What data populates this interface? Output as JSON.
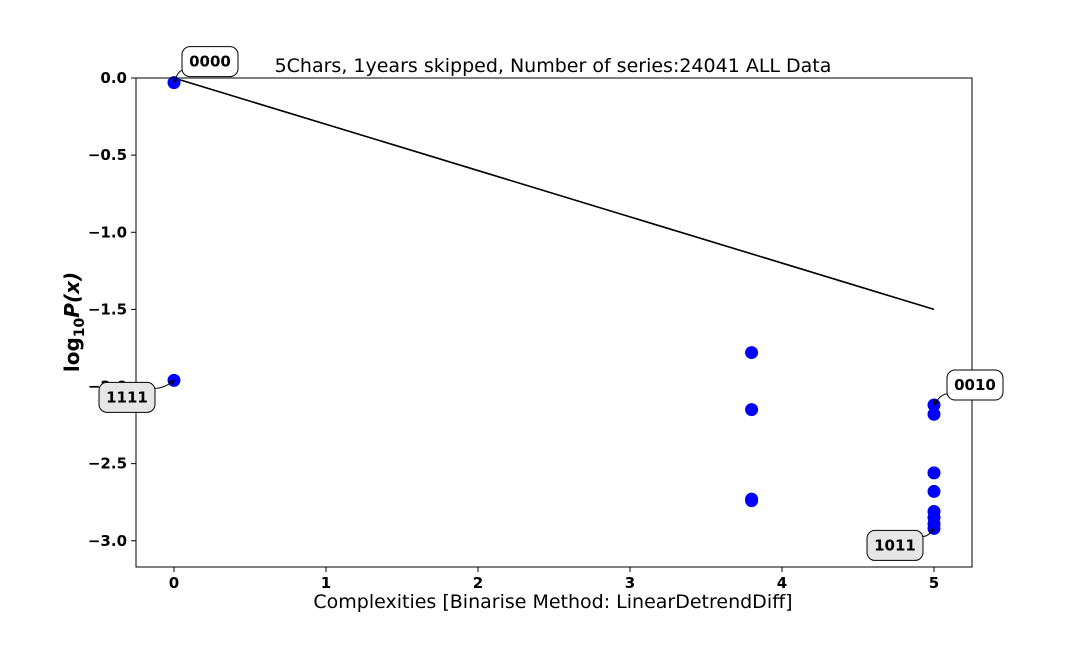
{
  "chart_data": {
    "type": "scatter",
    "title": "5Chars, 1years skipped, Number of series:24041 ALL Data",
    "xlabel": "Complexities [Binarise Method: LinearDetrendDiff]",
    "ylabel_main": "log",
    "ylabel_sub": "10",
    "ylabel_tail": "P(x)",
    "xlim": [
      -0.25,
      5.25
    ],
    "ylim": [
      -3.17,
      0.0
    ],
    "xticks": [
      0,
      1,
      2,
      3,
      4,
      5
    ],
    "yticks": [
      0.0,
      -0.5,
      -1.0,
      -1.5,
      -2.0,
      -2.5,
      -3.0
    ],
    "ytick_labels": [
      "0.0",
      "−0.5",
      "−1.0",
      "−1.5",
      "−2.0",
      "−2.5",
      "−3.0"
    ],
    "point_color": "#0000ff",
    "points": [
      {
        "x": 0,
        "y": -0.03
      },
      {
        "x": 0,
        "y": -1.96
      },
      {
        "x": 3.8,
        "y": -1.78
      },
      {
        "x": 3.8,
        "y": -2.15
      },
      {
        "x": 3.8,
        "y": -2.73
      },
      {
        "x": 3.8,
        "y": -2.74
      },
      {
        "x": 5,
        "y": -2.12
      },
      {
        "x": 5,
        "y": -2.18
      },
      {
        "x": 5,
        "y": -2.56
      },
      {
        "x": 5,
        "y": -2.68
      },
      {
        "x": 5,
        "y": -2.81
      },
      {
        "x": 5,
        "y": -2.85
      },
      {
        "x": 5,
        "y": -2.89
      },
      {
        "x": 5,
        "y": -2.92
      }
    ],
    "trend_line": {
      "x": [
        0,
        5
      ],
      "y": [
        0.0,
        -1.5
      ],
      "color": "#000000"
    },
    "annotations": [
      {
        "text": "0000",
        "x": 0,
        "y": -0.03
      },
      {
        "text": "1111",
        "x": 0,
        "y": -1.96
      },
      {
        "text": "0010",
        "x": 5,
        "y": -2.12
      },
      {
        "text": "1011",
        "x": 5,
        "y": -2.92
      }
    ]
  }
}
